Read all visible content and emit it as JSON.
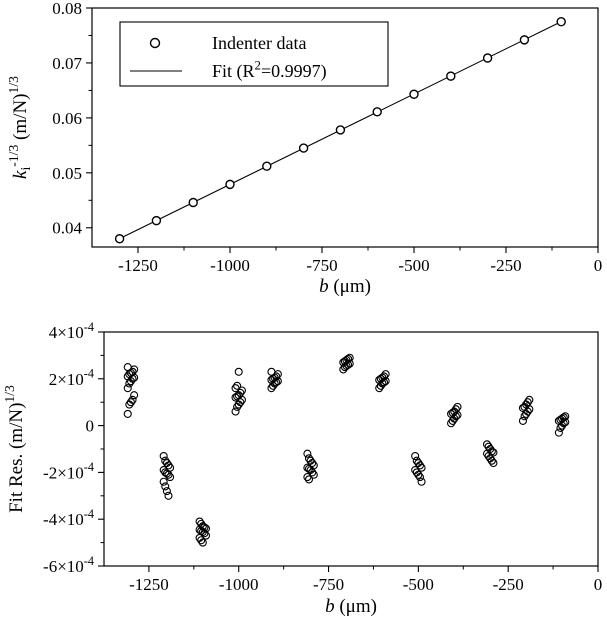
{
  "figure": {
    "background": "#ffffff",
    "ink": "#000000"
  },
  "chart_data": [
    {
      "type": "scatter",
      "id": "indenter-calibration",
      "xlabel": [
        {
          "t": "b",
          "i": true
        },
        {
          "t": " (μm)"
        }
      ],
      "ylabel": [
        {
          "t": "k",
          "i": true
        },
        {
          "t": "i",
          "sub": true
        },
        {
          "t": "-1/3",
          "sup": true
        },
        {
          "t": " (m/N)"
        },
        {
          "t": "1/3",
          "sup": true
        }
      ],
      "xlim": [
        -1375,
        0
      ],
      "ylim": [
        0.0365,
        0.08
      ],
      "x_ticks": {
        "values": [
          -1250,
          -1000,
          -750,
          -500,
          -250,
          0
        ],
        "labels": [
          "-1250",
          "-1000",
          "-750",
          "-500",
          "-250",
          "0"
        ]
      },
      "y_ticks": {
        "values": [
          0.04,
          0.05,
          0.06,
          0.07,
          0.08
        ],
        "labels": [
          "0.04",
          "0.05",
          "0.06",
          "0.07",
          "0.08"
        ]
      },
      "legend": {
        "items": [
          {
            "marker": "circle",
            "label": [
              {
                "t": "Indenter data"
              }
            ]
          },
          {
            "marker": "line",
            "label": [
              {
                "t": "Fit (R"
              },
              {
                "t": "2",
                "sup": true
              },
              {
                "t": "=0.9997)"
              }
            ]
          }
        ]
      },
      "series": [
        {
          "name": "Indenter data",
          "type": "scatter",
          "x": [
            -1300,
            -1200,
            -1100,
            -1000,
            -900,
            -800,
            -700,
            -600,
            -500,
            -400,
            -300,
            -200,
            -100
          ],
          "y": [
            0.038,
            0.0413,
            0.0446,
            0.0479,
            0.0512,
            0.0545,
            0.0578,
            0.0611,
            0.0643,
            0.0676,
            0.0709,
            0.0742,
            0.0775
          ]
        },
        {
          "name": "Fit",
          "type": "line",
          "slope": 3.29e-05,
          "intercept": 0.0808,
          "x_start": -1310,
          "x_end": -95,
          "r_squared": 0.9997
        }
      ]
    },
    {
      "type": "scatter",
      "id": "fit-residuals",
      "xlabel": [
        {
          "t": "b",
          "i": true
        },
        {
          "t": " (μm)"
        }
      ],
      "ylabel": [
        {
          "t": "Fit Res. (m/N)"
        },
        {
          "t": "1/3",
          "sup": true
        }
      ],
      "xlim": [
        -1375,
        0
      ],
      "ylim": [
        -0.0006,
        0.0004
      ],
      "x_ticks": {
        "values": [
          -1250,
          -1000,
          -750,
          -500,
          -250,
          0
        ],
        "labels": [
          "-1250",
          "-1000",
          "-750",
          "-500",
          "-250",
          "0"
        ]
      },
      "y_ticks": {
        "values": [
          0.0004,
          0.0002,
          0,
          -0.0002,
          -0.0004,
          -0.0006
        ],
        "labels": [
          [
            {
              "t": "4×10"
            },
            {
              "t": "-4",
              "sup": true
            }
          ],
          [
            {
              "t": "2×10"
            },
            {
              "t": "-4",
              "sup": true
            }
          ],
          [
            {
              "t": "0"
            }
          ],
          [
            {
              "t": "-2×10"
            },
            {
              "t": "-4",
              "sup": true
            }
          ],
          [
            {
              "t": "-4×10"
            },
            {
              "t": "-4",
              "sup": true
            }
          ],
          [
            {
              "t": "-6×10"
            },
            {
              "t": "-4",
              "sup": true
            }
          ]
        ]
      },
      "unit": 0.0001,
      "clusters": [
        {
          "x": -1300,
          "y_1e4": [
            0.5,
            0.9,
            1.0,
            1.1,
            1.3,
            1.6,
            1.8,
            1.9,
            2.0,
            2.05,
            2.1,
            2.2,
            2.25,
            2.3,
            2.4,
            2.5
          ]
        },
        {
          "x": -1200,
          "y_1e4": [
            -1.3,
            -1.5,
            -1.6,
            -1.7,
            -1.8,
            -1.9,
            -2.0,
            -2.05,
            -2.1,
            -2.2,
            -2.4,
            -2.6,
            -2.8,
            -3.0
          ]
        },
        {
          "x": -1100,
          "y_1e4": [
            -4.1,
            -4.2,
            -4.3,
            -4.35,
            -4.4,
            -4.45,
            -4.5,
            -4.55,
            -4.6,
            -4.7,
            -4.8,
            -4.9,
            -5.0
          ]
        },
        {
          "x": -1000,
          "y_1e4": [
            0.6,
            0.8,
            0.9,
            1.0,
            1.1,
            1.2,
            1.25,
            1.3,
            1.4,
            1.5,
            1.6,
            1.7,
            2.3
          ]
        },
        {
          "x": -900,
          "y_1e4": [
            1.6,
            1.7,
            1.8,
            1.85,
            1.9,
            1.95,
            2.0,
            2.05,
            2.1,
            2.2,
            2.3
          ]
        },
        {
          "x": -800,
          "y_1e4": [
            -1.2,
            -1.4,
            -1.5,
            -1.6,
            -1.7,
            -1.8,
            -1.85,
            -1.9,
            -2.0,
            -2.1,
            -2.2,
            -2.3
          ]
        },
        {
          "x": -700,
          "y_1e4": [
            2.4,
            2.5,
            2.55,
            2.6,
            2.65,
            2.7,
            2.75,
            2.8,
            2.85,
            2.9
          ]
        },
        {
          "x": -600,
          "y_1e4": [
            1.6,
            1.7,
            1.8,
            1.85,
            1.9,
            1.95,
            2.0,
            2.05,
            2.1,
            2.2
          ]
        },
        {
          "x": -500,
          "y_1e4": [
            -1.3,
            -1.5,
            -1.6,
            -1.7,
            -1.8,
            -1.9,
            -2.0,
            -2.1,
            -2.2,
            -2.4
          ]
        },
        {
          "x": -400,
          "y_1e4": [
            0.1,
            0.2,
            0.3,
            0.4,
            0.45,
            0.5,
            0.55,
            0.6,
            0.7,
            0.8
          ]
        },
        {
          "x": -300,
          "y_1e4": [
            -0.8,
            -0.9,
            -1.0,
            -1.1,
            -1.15,
            -1.2,
            -1.3,
            -1.4,
            -1.5,
            -1.6
          ]
        },
        {
          "x": -200,
          "y_1e4": [
            0.2,
            0.4,
            0.5,
            0.6,
            0.7,
            0.75,
            0.8,
            0.9,
            1.0,
            1.1
          ]
        },
        {
          "x": -100,
          "y_1e4": [
            -0.3,
            -0.1,
            0.0,
            0.1,
            0.15,
            0.2,
            0.25,
            0.3,
            0.35,
            0.4
          ]
        }
      ]
    }
  ]
}
